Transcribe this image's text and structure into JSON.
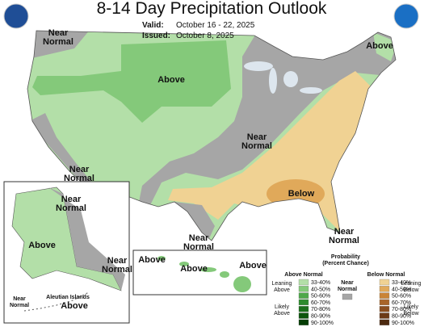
{
  "header": {
    "title": "8-14 Day Precipitation Outlook",
    "valid_label": "Valid:",
    "valid_dates": "October 16 - 22, 2025",
    "issued_label": "Issued:",
    "issued_date": "October 8, 2025"
  },
  "map_labels": [
    {
      "lines": [
        "Near",
        "Normal"
      ]
    },
    {
      "lines": [
        "Above"
      ]
    },
    {
      "lines": [
        "Above"
      ]
    },
    {
      "lines": [
        "Near",
        "Normal"
      ]
    },
    {
      "lines": [
        "Near",
        "Normal"
      ]
    },
    {
      "lines": [
        "Below"
      ]
    },
    {
      "lines": [
        "Near",
        "Normal"
      ]
    },
    {
      "lines": [
        "Near",
        "Normal"
      ]
    }
  ],
  "alaska_labels": [
    {
      "lines": [
        "Near",
        "Normal"
      ]
    },
    {
      "lines": [
        "Above"
      ]
    },
    {
      "lines": [
        "Near",
        "Normal"
      ]
    },
    {
      "lines": [
        "Near",
        "Normal"
      ]
    },
    {
      "lines": [
        "Aleutian Islands"
      ]
    },
    {
      "lines": [
        "Above"
      ]
    }
  ],
  "hawaii_labels": [
    {
      "lines": [
        "Above"
      ]
    },
    {
      "lines": [
        "Above"
      ]
    },
    {
      "lines": [
        "Above"
      ]
    }
  ],
  "legend": {
    "title": [
      "Probability",
      "(Percent Chance)"
    ],
    "above_header": "Above Normal",
    "below_header": "Below Normal",
    "leaning_above": [
      "Leaning",
      "Above"
    ],
    "likely_above": [
      "Likely",
      "Above"
    ],
    "near_normal": [
      "Near",
      "Normal"
    ],
    "near_color": "#a6a6a6",
    "leaning_below": [
      "Leaning",
      "Below"
    ],
    "likely_below": [
      "Likely",
      "Below"
    ],
    "above_bins": [
      "33-40%",
      "40-50%",
      "50-60%",
      "60-70%",
      "70-80%",
      "80-90%",
      "90-100%"
    ],
    "above_colors": [
      "#b3dfa8",
      "#84c97a",
      "#4ea84a",
      "#2e8b2e",
      "#1b6e1b",
      "#0d550d",
      "#053d05"
    ],
    "below_bins": [
      "33-40%",
      "40-50%",
      "50-60%",
      "60-70%",
      "70-80%",
      "80-90%",
      "90-100%"
    ],
    "below_colors": [
      "#f0d293",
      "#e0a95a",
      "#c98437",
      "#a8652a",
      "#8a4e20",
      "#6b3a17",
      "#4d2a10"
    ]
  }
}
